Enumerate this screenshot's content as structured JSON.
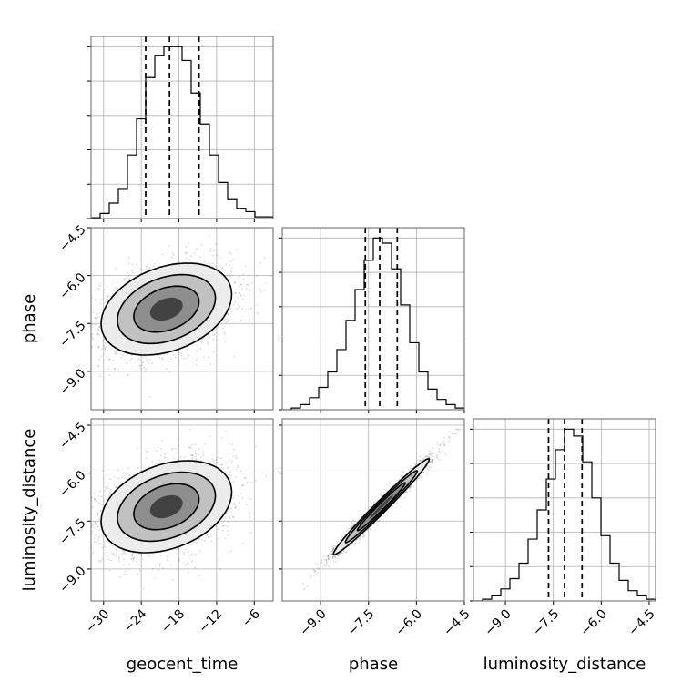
{
  "chart_data": {
    "type": "corner",
    "parameters": [
      "geocent_time",
      "phase",
      "luminosity_distance"
    ],
    "axes": {
      "geocent_time": {
        "range": [
          -32,
          -3
        ],
        "ticks": [
          -30,
          -24,
          -18,
          -12,
          -6
        ],
        "tick_labels": [
          "−30",
          "−24",
          "−18",
          "−12",
          "−6"
        ]
      },
      "phase": {
        "range": [
          -10.2,
          -4.5
        ],
        "ticks": [
          -9.0,
          -7.5,
          -6.0,
          -4.5
        ],
        "tick_labels": [
          "−9.0",
          "−7.5",
          "−6.0",
          "−4.5"
        ]
      },
      "luminosity_distance": {
        "range": [
          -10.0,
          -4.3
        ],
        "ticks": [
          -9.0,
          -7.5,
          -6.0,
          -4.5
        ],
        "tick_labels": [
          "−9.0",
          "−7.5",
          "−6.0",
          "−4.5"
        ]
      }
    },
    "marginals": {
      "geocent_time": {
        "bin_edges": [
          -32,
          -30.55,
          -29.1,
          -27.65,
          -26.2,
          -24.75,
          -23.3,
          -21.85,
          -20.4,
          -18.95,
          -17.5,
          -16.05,
          -14.6,
          -13.15,
          -11.7,
          -10.25,
          -8.8,
          -7.35,
          -5.9,
          -4.45,
          -3
        ],
        "counts": [
          0.5,
          3,
          9,
          17,
          37,
          58,
          82,
          95,
          100,
          100,
          92,
          73,
          55,
          37,
          21,
          11,
          6,
          4,
          1,
          1
        ],
        "quantiles": [
          -23.3,
          -19.5,
          -14.8
        ]
      },
      "phase": {
        "bin_edges": [
          -10.2,
          -9.915,
          -9.63,
          -9.345,
          -9.06,
          -8.775,
          -8.49,
          -8.205,
          -7.92,
          -7.635,
          -7.35,
          -7.065,
          -6.78,
          -6.495,
          -6.21,
          -5.925,
          -5.64,
          -5.355,
          -5.07,
          -4.785,
          -4.5
        ],
        "counts": [
          0,
          1,
          3,
          7,
          13,
          22,
          35,
          52,
          70,
          87,
          100,
          97,
          82,
          61,
          39,
          22,
          12,
          6,
          3,
          1
        ],
        "quantiles": [
          -7.6,
          -7.15,
          -6.6
        ]
      },
      "luminosity_distance": {
        "bin_edges": [
          -10,
          -9.715,
          -9.43,
          -9.145,
          -8.86,
          -8.575,
          -8.29,
          -8.005,
          -7.72,
          -7.435,
          -7.15,
          -6.865,
          -6.58,
          -6.295,
          -6.01,
          -5.725,
          -5.44,
          -5.155,
          -4.87,
          -4.585,
          -4.3
        ],
        "counts": [
          0,
          1,
          3,
          7,
          13,
          22,
          36,
          53,
          71,
          88,
          100,
          96,
          81,
          60,
          38,
          22,
          12,
          6,
          3,
          1
        ],
        "quantiles": [
          -7.65,
          -7.15,
          -6.6
        ]
      }
    },
    "joint": [
      {
        "x": "geocent_time",
        "y": "phase",
        "mean": [
          -20,
          -7.05
        ],
        "std": [
          5.2,
          0.72
        ],
        "corr": 0.32
      },
      {
        "x": "geocent_time",
        "y": "luminosity_distance",
        "mean": [
          -20,
          -7.05
        ],
        "std": [
          5.2,
          0.72
        ],
        "corr": 0.32
      },
      {
        "x": "phase",
        "y": "luminosity_distance",
        "mean": [
          -7.1,
          -7.05
        ],
        "std": [
          0.75,
          0.75
        ],
        "corr": 0.985
      }
    ],
    "contour_levels_sigma": [
      1.0,
      1.5,
      2.0
    ],
    "grid": true
  }
}
